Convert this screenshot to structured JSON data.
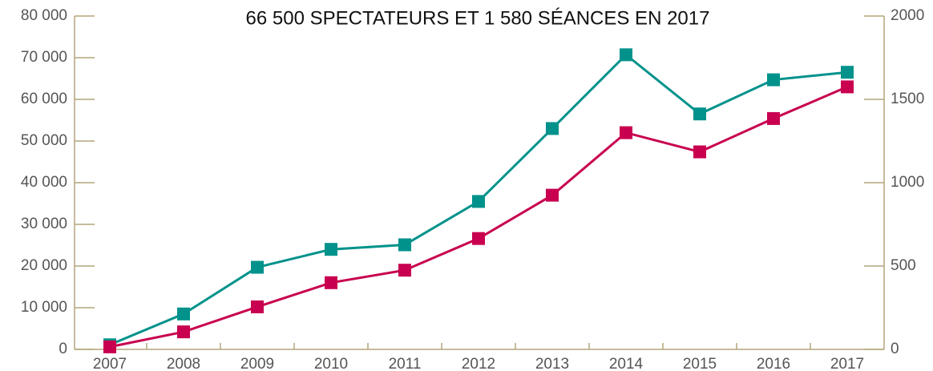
{
  "chart_data": {
    "type": "line",
    "title": "66 500 SPECTATEURS ET 1 580 SÉANCES EN 2017",
    "categories": [
      "2007",
      "2008",
      "2009",
      "2010",
      "2011",
      "2012",
      "2013",
      "2014",
      "2015",
      "2016",
      "2017"
    ],
    "series": [
      {
        "name": "Spectateurs",
        "color": "#00928b",
        "values": [
          1100,
          8500,
          19700,
          24000,
          25100,
          35500,
          53000,
          70700,
          56500,
          64700,
          66500
        ]
      },
      {
        "name": "Séances",
        "color": "#c8004f",
        "axis": "y2",
        "values": [
          15,
          105,
          255,
          400,
          475,
          665,
          925,
          1300,
          1185,
          1385,
          1575
        ]
      }
    ],
    "ylim": [
      0,
      80000
    ],
    "yticks": [
      0,
      {
        "value": 10000,
        "label": "10 000"
      },
      {
        "value": 20000,
        "label": "20 000"
      },
      {
        "value": 30000,
        "label": "30 000"
      },
      {
        "value": 40000,
        "label": "40 000"
      },
      {
        "value": 50000,
        "label": "50 000"
      },
      {
        "value": 60000,
        "label": "60 000"
      },
      {
        "value": 70000,
        "label": "70 000"
      },
      {
        "value": 80000,
        "label": "80 000"
      }
    ],
    "y2lim": [
      0,
      2000
    ],
    "y2ticks": [
      0,
      500,
      1000,
      1500,
      2000
    ],
    "axis_color": "#b3a679"
  }
}
